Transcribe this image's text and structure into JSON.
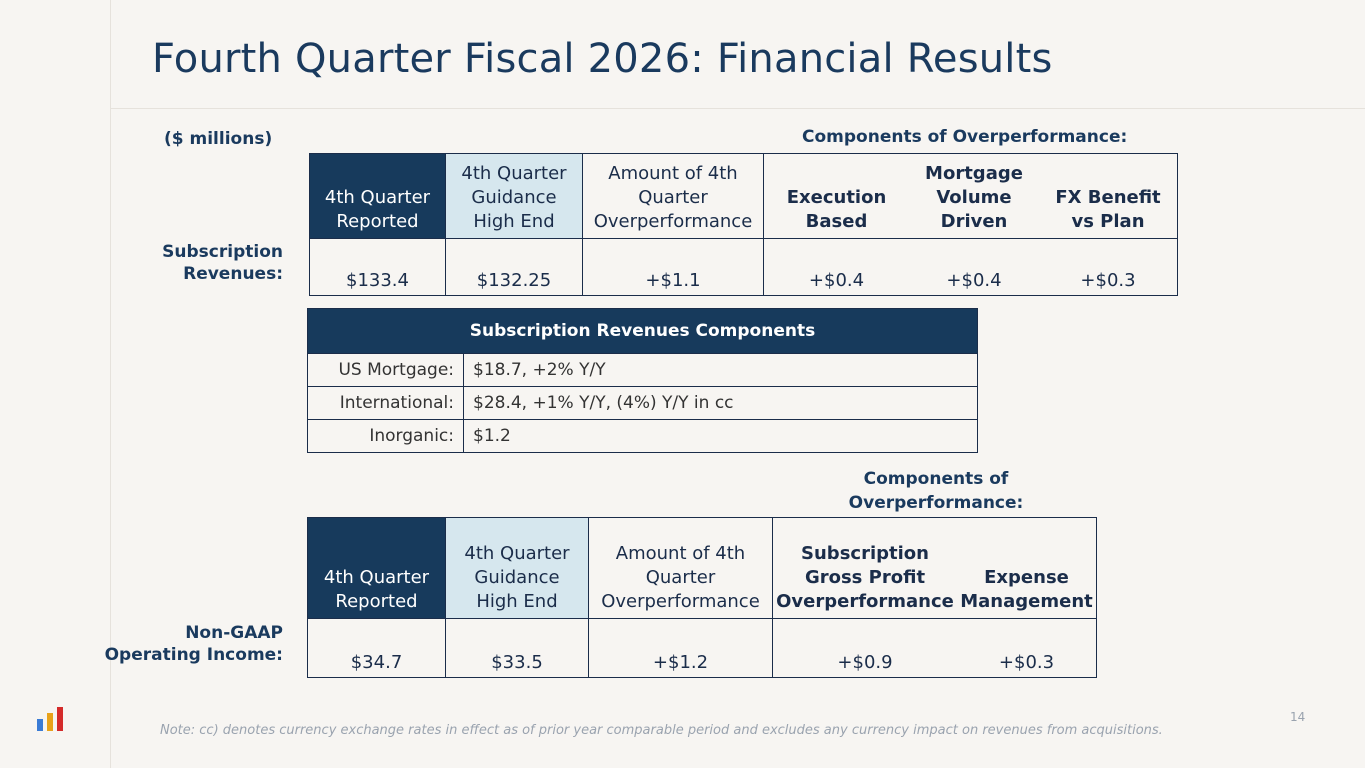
{
  "title": "Fourth Quarter Fiscal 2026: Financial Results",
  "units_label": "($ millions)",
  "components_label_1": "Components of Overperformance:",
  "components_label_2": [
    "Components of",
    "Overperformance:"
  ],
  "subscription": {
    "row_label": [
      "Subscription",
      "Revenues:"
    ],
    "headers": [
      [
        "4th Quarter",
        "Reported"
      ],
      [
        "4th Quarter",
        "Guidance",
        "High End"
      ],
      [
        "Amount of 4th",
        "Quarter",
        "Overperformance"
      ],
      [
        "Execution",
        "Based"
      ],
      [
        "Mortgage",
        "Volume",
        "Driven"
      ],
      [
        "FX Benefit",
        "vs Plan"
      ]
    ],
    "values": [
      "$133.4",
      "$132.25",
      "+$1.1",
      "+$0.4",
      "+$0.4",
      "+$0.3"
    ]
  },
  "components_table": {
    "header": "Subscription Revenues Components",
    "rows": [
      {
        "key": "US Mortgage:",
        "value": "$18.7, +2% Y/Y"
      },
      {
        "key": "International:",
        "value": "$28.4, +1% Y/Y, (4%) Y/Y in cc"
      },
      {
        "key": "Inorganic:",
        "value": "$1.2"
      }
    ]
  },
  "operating": {
    "row_label": [
      "Non-GAAP",
      "Operating Income:"
    ],
    "headers": [
      [
        "4th Quarter",
        "Reported"
      ],
      [
        "4th Quarter",
        "Guidance",
        "High End"
      ],
      [
        "Amount of 4th",
        "Quarter",
        "Overperformance"
      ],
      [
        "Subscription",
        "Gross Profit",
        "Overperformance"
      ],
      [
        "Expense",
        "Management"
      ]
    ],
    "values": [
      "$34.7",
      "$33.5",
      "+$1.2",
      "+$0.9",
      "+$0.3"
    ]
  },
  "note": "Note: cc) denotes currency exchange rates in effect as of prior year comparable period and excludes any currency impact on revenues from acquisitions.",
  "page_number": "14",
  "colors": {
    "navy": "#173a5c",
    "light_blue": "#d6e7ee",
    "title": "#1a3a5e",
    "logo_blue": "#3a7bd5",
    "logo_gold": "#e8a21a",
    "logo_red": "#d42a2a"
  }
}
